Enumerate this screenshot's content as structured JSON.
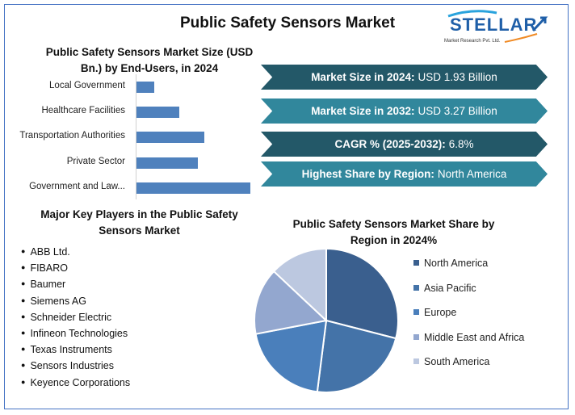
{
  "title": "Public Safety Sensors Market",
  "logo": {
    "name": "STELLAR",
    "tagline": "Market Research Pvt. Ltd."
  },
  "banners": [
    {
      "label": "Market Size in 2024:",
      "value": "USD 1.93 Billion",
      "color": "#235868"
    },
    {
      "label": "Market Size in 2032:",
      "value": "USD 3.27 Billion",
      "color": "#31879c"
    },
    {
      "label": "CAGR % (2025-2032):",
      "value": "6.8%",
      "color": "#235868"
    },
    {
      "label": "Highest Share by Region:",
      "value": "North America",
      "color": "#31879c"
    }
  ],
  "key_players": {
    "title": "Major Key Players in the Public Safety Sensors Market",
    "items": [
      "ABB Ltd.",
      "FIBARO",
      "Baumer",
      "Siemens AG",
      "Schneider Electric",
      "Infineon Technologies",
      "Texas Instruments",
      "Sensors Industries",
      "Keyence Corporations"
    ]
  },
  "chart_data": [
    {
      "type": "bar",
      "orientation": "horizontal",
      "title": "Public Safety Sensors Market Size (USD Bn.) by End-Users, in 2024",
      "categories": [
        "Local Government",
        "Healthcare Facilities",
        "Transportation Authorities",
        "Private Sector",
        "Government and Law..."
      ],
      "values": [
        0.11,
        0.27,
        0.43,
        0.39,
        0.72
      ],
      "color": "#4f81bd",
      "grid": false
    },
    {
      "type": "pie",
      "title": "Public Safety Sensors Market Share by Region in 2024%",
      "legend": "right",
      "categories": [
        "North America",
        "Asia Pacific",
        "Europe",
        "Middle East and Africa",
        "South America"
      ],
      "values": [
        29,
        23,
        20,
        15,
        13
      ],
      "colors": [
        "#3a5f8e",
        "#4473a8",
        "#4a7fbb",
        "#93a7cf",
        "#bcc8e0"
      ]
    }
  ]
}
